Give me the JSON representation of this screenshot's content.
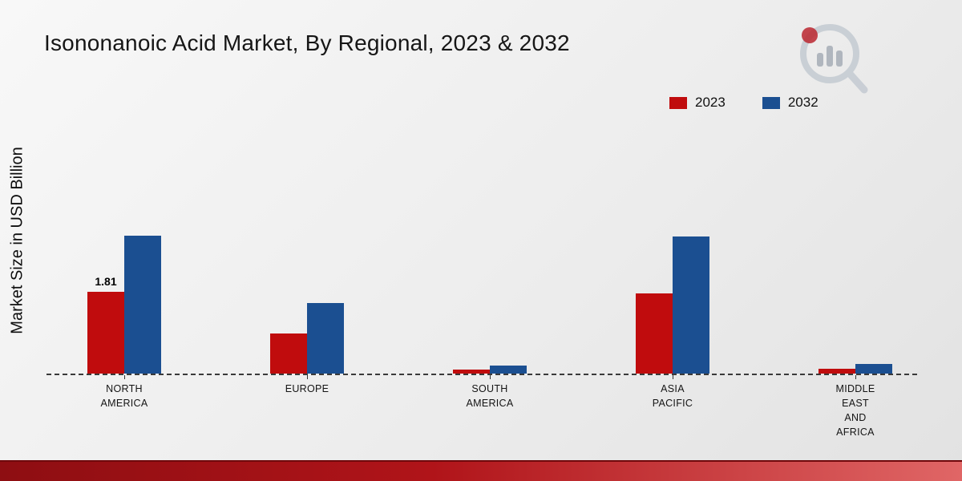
{
  "title": "Isononanoic Acid Market, By Regional, 2023 & 2032",
  "ylabel": "Market Size in USD Billion",
  "chart_data": {
    "type": "bar",
    "title": "Isononanoic Acid Market, By Regional, 2023 & 2032",
    "xlabel": "",
    "ylabel": "Market Size in USD Billion",
    "ylim": [
      0,
      3.4
    ],
    "baseline_style": "dashed",
    "legend_position": "top-right",
    "categories": [
      "NORTH AMERICA",
      "EUROPE",
      "SOUTH AMERICA",
      "ASIA PACIFIC",
      "MIDDLE EAST AND AFRICA"
    ],
    "series": [
      {
        "name": "2023",
        "color": "#c00c0d",
        "values": [
          1.81,
          0.89,
          0.09,
          1.77,
          0.11
        ]
      },
      {
        "name": "2032",
        "color": "#1b4f91",
        "values": [
          3.05,
          1.56,
          0.18,
          3.03,
          0.21
        ]
      }
    ],
    "annotations": [
      {
        "series": "2023",
        "category": "NORTH AMERICA",
        "text": "1.81"
      }
    ]
  }
}
